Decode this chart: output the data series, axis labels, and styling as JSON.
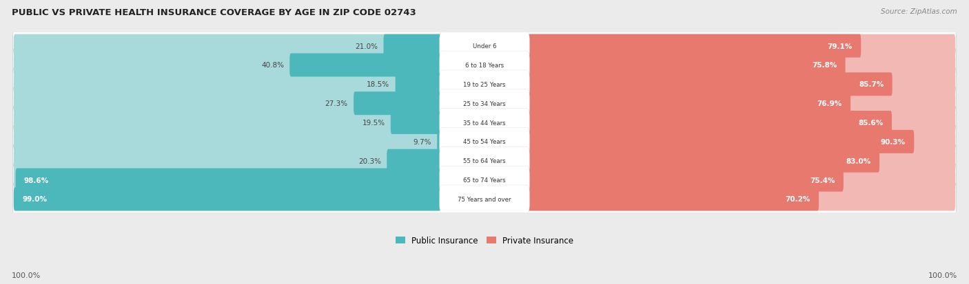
{
  "title": "PUBLIC VS PRIVATE HEALTH INSURANCE COVERAGE BY AGE IN ZIP CODE 02743",
  "source": "Source: ZipAtlas.com",
  "categories": [
    "Under 6",
    "6 to 18 Years",
    "19 to 25 Years",
    "25 to 34 Years",
    "35 to 44 Years",
    "45 to 54 Years",
    "55 to 64 Years",
    "65 to 74 Years",
    "75 Years and over"
  ],
  "public_values": [
    21.0,
    40.8,
    18.5,
    27.3,
    19.5,
    9.7,
    20.3,
    98.6,
    99.0
  ],
  "private_values": [
    79.1,
    75.8,
    85.7,
    76.9,
    85.6,
    90.3,
    83.0,
    75.4,
    70.2
  ],
  "public_color": "#4DB8BB",
  "private_color": "#E8796E",
  "public_color_light": "#A8DADB",
  "private_color_light": "#F2B8B3",
  "bg_color": "#EBEBEB",
  "row_bg_color": "#FFFFFF",
  "title_color": "#222222",
  "value_color_dark": "#444444",
  "value_color_white": "#FFFFFF",
  "legend_public": "Public Insurance",
  "legend_private": "Private Insurance",
  "bottom_label": "100.0%"
}
